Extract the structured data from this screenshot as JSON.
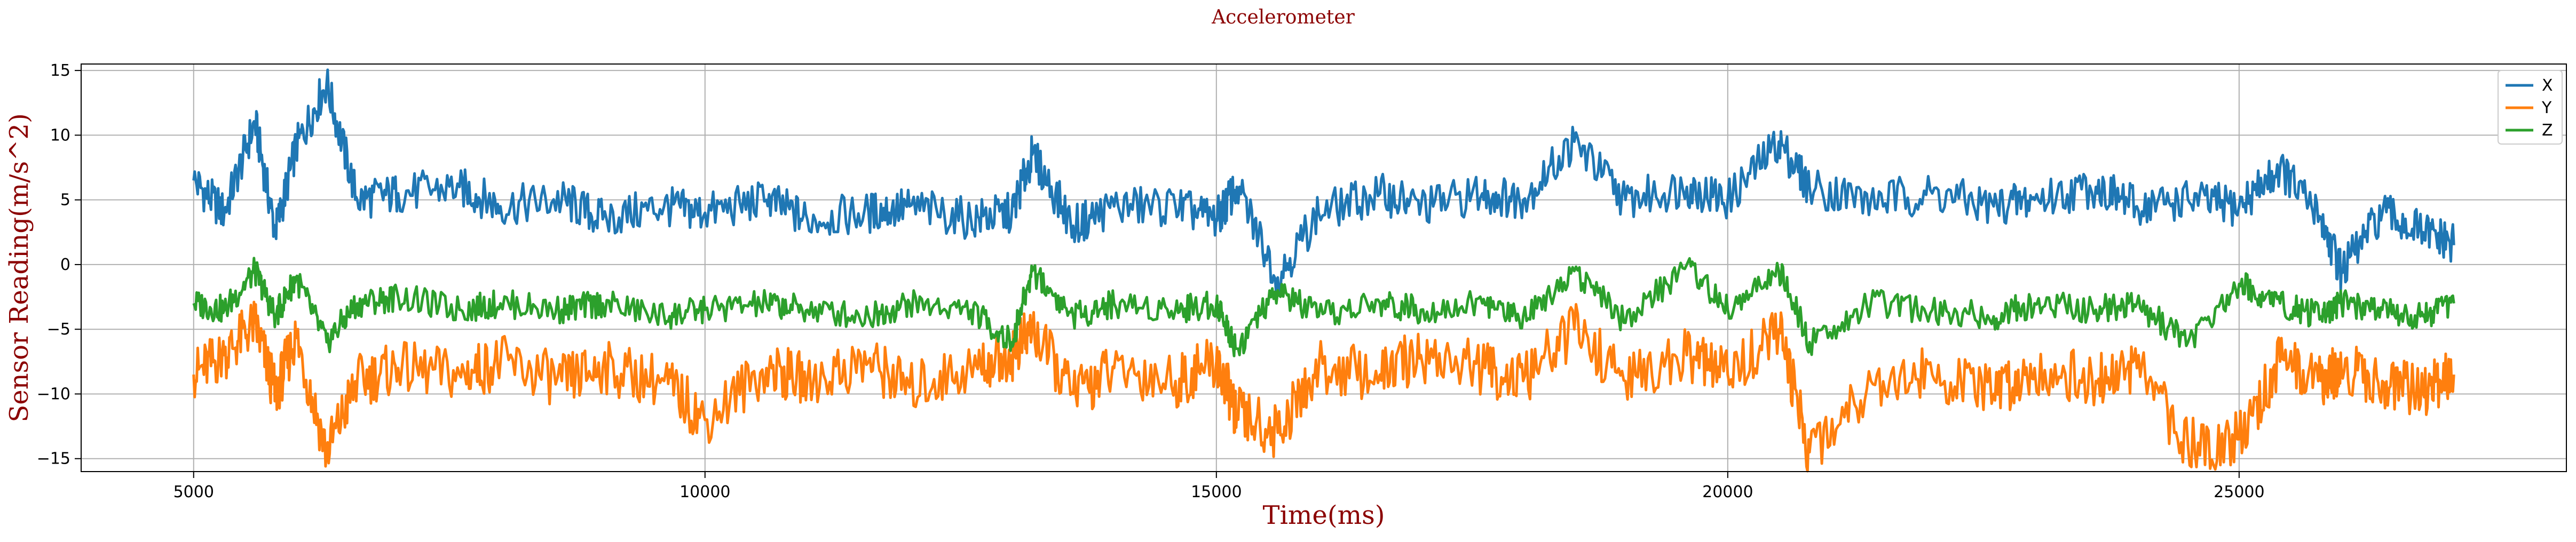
{
  "chart_data": {
    "type": "line",
    "title": "Accelerometer",
    "xlabel": "Time(ms)",
    "ylabel": "Sensor Reading(m/s^2)",
    "xlim": [
      3900,
      28200
    ],
    "ylim": [
      -16,
      15.5
    ],
    "x_ticks": [
      5000,
      10000,
      15000,
      20000,
      25000
    ],
    "x_tick_labels": [
      "5000",
      "10000",
      "15000",
      "20000",
      "25000"
    ],
    "y_ticks": [
      -15,
      -10,
      -5,
      0,
      5,
      10,
      15
    ],
    "y_tick_labels": [
      "−15",
      "−10",
      "−5",
      "0",
      "5",
      "10",
      "15"
    ],
    "grid": true,
    "legend_position": "top-right",
    "x_range": [
      5000,
      27100
    ],
    "series": [
      {
        "name": "X",
        "color": "#1f77b4",
        "x": [
          5000,
          5300,
          5600,
          5800,
          6000,
          6300,
          6600,
          7000,
          7600,
          8000,
          8600,
          9000,
          9600,
          10000,
          10600,
          11000,
          11600,
          12000,
          12600,
          13000,
          13200,
          13600,
          14000,
          14600,
          15000,
          15200,
          15600,
          16000,
          16600,
          17000,
          17600,
          18000,
          18500,
          19000,
          19600,
          20000,
          20500,
          20800,
          21400,
          22000,
          22600,
          23000,
          23600,
          24000,
          24500,
          25000,
          25400,
          25800,
          26000,
          26400,
          26800,
          27100
        ],
        "values": [
          6.5,
          4.0,
          11.0,
          2.5,
          9.0,
          14.0,
          5.0,
          5.5,
          6.0,
          4.5,
          5.0,
          3.5,
          4.5,
          4.0,
          5.0,
          3.5,
          4.0,
          4.5,
          3.5,
          4.0,
          8.5,
          3.0,
          4.5,
          4.5,
          3.5,
          6.0,
          -1.0,
          4.0,
          5.5,
          4.5,
          5.5,
          5.0,
          9.5,
          5.0,
          6.0,
          5.0,
          9.5,
          6.0,
          5.0,
          5.5,
          4.5,
          5.0,
          6.0,
          4.5,
          5.0,
          4.5,
          7.5,
          3.5,
          -0.5,
          4.0,
          2.5,
          1.5
        ]
      },
      {
        "name": "Y",
        "color": "#ff7f0e",
        "x": [
          5000,
          5300,
          5600,
          5800,
          6000,
          6300,
          6600,
          7000,
          7600,
          8000,
          8600,
          9000,
          9600,
          10000,
          10600,
          11000,
          11600,
          12000,
          12600,
          13000,
          13200,
          13600,
          14000,
          14600,
          15000,
          15200,
          15600,
          16000,
          16600,
          17000,
          17600,
          18000,
          18500,
          19000,
          19600,
          20000,
          20500,
          20800,
          21400,
          22000,
          22600,
          23000,
          23600,
          24000,
          24500,
          25000,
          25400,
          25800,
          26000,
          26400,
          26800,
          27100
        ],
        "values": [
          -8.5,
          -7.0,
          -4.5,
          -10.0,
          -5.5,
          -14.5,
          -9.0,
          -8.0,
          -8.5,
          -7.5,
          -9.0,
          -8.0,
          -9.0,
          -12.0,
          -8.0,
          -9.0,
          -7.5,
          -9.5,
          -8.0,
          -7.0,
          -5.0,
          -10.0,
          -8.0,
          -9.0,
          -7.5,
          -11.5,
          -13.0,
          -8.0,
          -8.5,
          -7.0,
          -8.0,
          -9.0,
          -5.0,
          -9.0,
          -7.0,
          -8.5,
          -5.0,
          -14.5,
          -9.0,
          -8.5,
          -10.0,
          -8.0,
          -9.0,
          -8.0,
          -14.0,
          -13.5,
          -7.5,
          -9.0,
          -8.0,
          -9.0,
          -10.0,
          -8.5
        ]
      },
      {
        "name": "Z",
        "color": "#2ca02c",
        "x": [
          5000,
          5300,
          5600,
          5800,
          6000,
          6300,
          6600,
          7000,
          7600,
          8000,
          8600,
          9000,
          9600,
          10000,
          10600,
          11000,
          11600,
          12000,
          12600,
          13000,
          13200,
          13600,
          14000,
          14600,
          15000,
          15200,
          15600,
          16000,
          16600,
          17000,
          17600,
          18000,
          18500,
          19000,
          19600,
          20000,
          20500,
          20800,
          21400,
          22000,
          22600,
          23000,
          23600,
          24000,
          24500,
          25000,
          25400,
          25800,
          26000,
          26400,
          26800,
          27100
        ],
        "values": [
          -3.0,
          -3.5,
          -0.5,
          -4.0,
          -1.0,
          -6.0,
          -3.0,
          -2.5,
          -3.5,
          -3.0,
          -3.5,
          -3.0,
          -4.0,
          -3.5,
          -3.0,
          -3.5,
          -4.0,
          -3.0,
          -3.5,
          -6.0,
          -0.5,
          -4.0,
          -3.0,
          -3.5,
          -3.0,
          -6.5,
          -2.0,
          -4.0,
          -3.0,
          -3.5,
          -3.0,
          -4.0,
          -0.5,
          -4.5,
          0.0,
          -3.5,
          -0.5,
          -6.0,
          -3.0,
          -3.5,
          -4.0,
          -3.0,
          -3.5,
          -3.0,
          -6.0,
          -1.5,
          -3.0,
          -4.0,
          -3.0,
          -3.5,
          -4.0,
          -3.0
        ]
      }
    ]
  }
}
